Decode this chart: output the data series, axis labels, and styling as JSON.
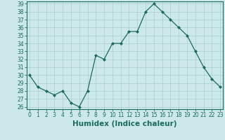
{
  "x": [
    0,
    1,
    2,
    3,
    4,
    5,
    6,
    7,
    8,
    9,
    10,
    11,
    12,
    13,
    14,
    15,
    16,
    17,
    18,
    19,
    20,
    21,
    22,
    23
  ],
  "y": [
    30,
    28.5,
    28,
    27.5,
    28,
    26.5,
    26,
    28,
    32.5,
    32,
    34,
    34,
    35.5,
    35.5,
    38,
    39,
    38,
    37,
    36,
    35,
    33,
    31,
    29.5,
    28.5
  ],
  "line_color": "#1a6b5e",
  "marker_color": "#1a6b5e",
  "bg_color": "#cce8e8",
  "grid_color": "#aacece",
  "xlabel": "Humidex (Indice chaleur)",
  "ylabel": "",
  "ylim_min": 26,
  "ylim_max": 39,
  "xlim_min": 0,
  "xlim_max": 23,
  "yticks": [
    26,
    27,
    28,
    29,
    30,
    31,
    32,
    33,
    34,
    35,
    36,
    37,
    38,
    39
  ],
  "xticks": [
    0,
    1,
    2,
    3,
    4,
    5,
    6,
    7,
    8,
    9,
    10,
    11,
    12,
    13,
    14,
    15,
    16,
    17,
    18,
    19,
    20,
    21,
    22,
    23
  ],
  "tick_fontsize": 5.5,
  "label_fontsize": 7.5,
  "tick_color": "#1a6b5e",
  "spine_color": "#1a6b5e"
}
